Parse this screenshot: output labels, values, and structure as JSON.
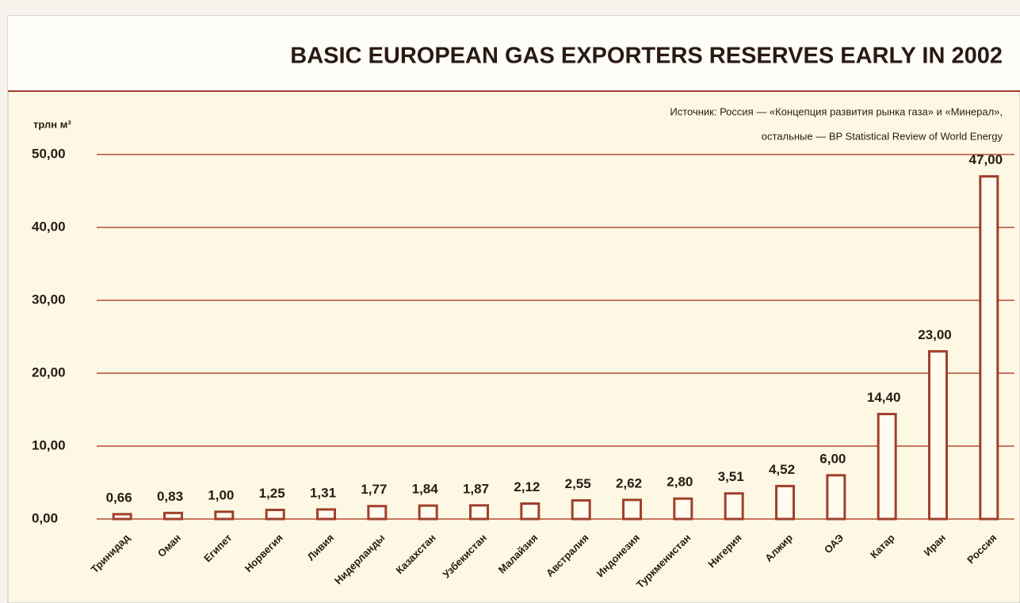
{
  "chart_data": {
    "type": "bar",
    "title": "BASIC EUROPEAN GAS EXPORTERS RESERVES EARLY IN 2002",
    "y_label": "трлн м³",
    "source": [
      "Источник: Россия — «Концепция развития рынка газа» и «Минерал»,",
      "остальные — BP Statistical Review of World Energy"
    ],
    "categories": [
      "Тринидад",
      "Оман",
      "Египет",
      "Норвегия",
      "Ливия",
      "Нидерланды",
      "Казахстан",
      "Узбекистан",
      "Малайзия",
      "Австралия",
      "Индонезия",
      "Туркменистан",
      "Нигерия",
      "Алжир",
      "ОАЭ",
      "Катар",
      "Иран",
      "Россия"
    ],
    "values": [
      0.66,
      0.83,
      1.0,
      1.25,
      1.31,
      1.77,
      1.84,
      1.87,
      2.12,
      2.55,
      2.62,
      2.8,
      3.51,
      4.52,
      6.0,
      14.4,
      23.0,
      47.0
    ],
    "value_labels": [
      "0,66",
      "0,83",
      "1,00",
      "1,25",
      "1,31",
      "1,77",
      "1,84",
      "1,87",
      "2,12",
      "2,55",
      "2,62",
      "2,80",
      "3,51",
      "4,52",
      "6,00",
      "14,40",
      "23,00",
      "47,00"
    ],
    "color": "#a0402c",
    "ylim": [
      0,
      50
    ],
    "yticks": [
      {
        "value": 0,
        "label": "0,00"
      },
      {
        "value": 10,
        "label": "10,00"
      },
      {
        "value": 20,
        "label": "20,00"
      },
      {
        "value": 30,
        "label": "30,00"
      },
      {
        "value": 40,
        "label": "40,00"
      },
      {
        "value": 50,
        "label": "50,00"
      }
    ],
    "grid": true
  }
}
